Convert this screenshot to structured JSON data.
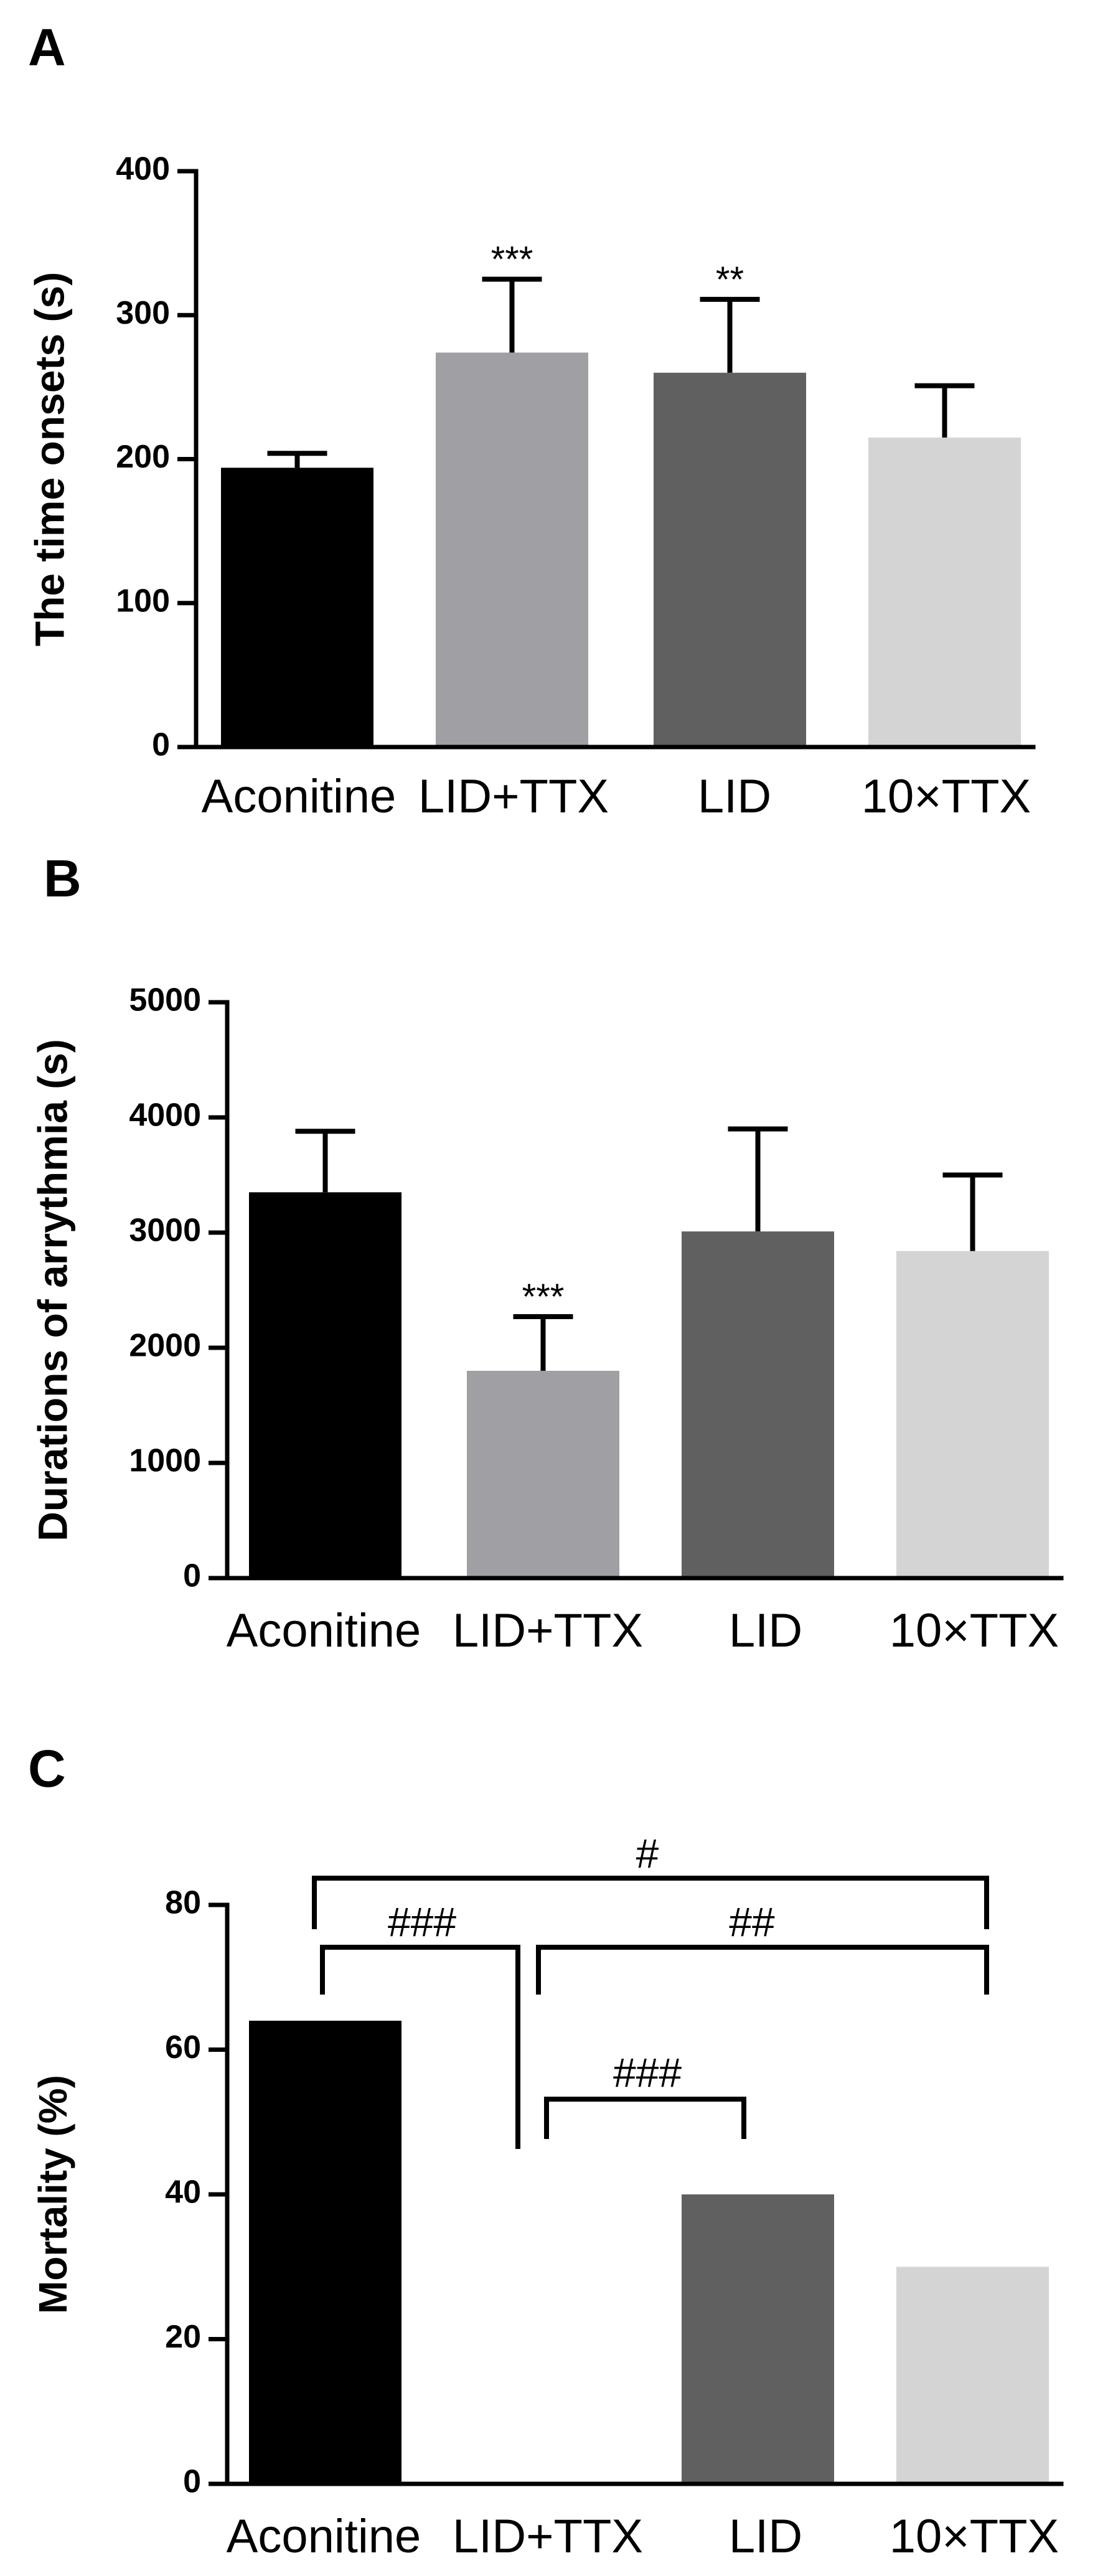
{
  "chart_data": [
    {
      "panel": "A",
      "type": "bar",
      "ylabel": "The time onsets (s)",
      "ylim": [
        0,
        400
      ],
      "yticks": [
        "0",
        "100",
        "200",
        "300",
        "400"
      ],
      "categories": [
        "Aconitine",
        "LID+TTX",
        "LID",
        "10×TTX"
      ],
      "values": [
        194,
        274,
        260,
        215
      ],
      "errors": [
        10,
        51,
        51,
        36
      ],
      "annotations": [
        "",
        "***",
        "**",
        ""
      ],
      "colors": [
        "#000000",
        "#a0a0a4",
        "#606060",
        "#d4d4d4"
      ]
    },
    {
      "panel": "B",
      "type": "bar",
      "ylabel": "Durations of arrythmia (s)",
      "ylim": [
        0,
        5000
      ],
      "yticks": [
        "0",
        "1000",
        "2000",
        "3000",
        "4000",
        "5000"
      ],
      "categories": [
        "Aconitine",
        "LID+TTX",
        "LID",
        "10×TTX"
      ],
      "values": [
        3350,
        1800,
        3010,
        2840
      ],
      "errors": [
        530,
        470,
        890,
        660
      ],
      "annotations": [
        "",
        "***",
        "",
        ""
      ],
      "colors": [
        "#000000",
        "#a0a0a4",
        "#606060",
        "#d4d4d4"
      ]
    },
    {
      "panel": "C",
      "type": "bar",
      "ylabel": "Mortality (%)",
      "ylim": [
        0,
        80
      ],
      "yticks": [
        "0",
        "20",
        "40",
        "60",
        "80"
      ],
      "categories": [
        "Aconitine",
        "LID+TTX",
        "LID",
        "10×TTX"
      ],
      "values": [
        64,
        0,
        40,
        30
      ],
      "colors": [
        "#000000",
        "#a0a0a4",
        "#606060",
        "#d4d4d4"
      ],
      "comparisons": [
        {
          "from": "Aconitine",
          "to": "10×TTX",
          "label": "#"
        },
        {
          "from": "Aconitine",
          "to": "LID+TTX",
          "label": "###"
        },
        {
          "from": "LID+TTX",
          "to": "10×TTX",
          "label": "##"
        },
        {
          "from": "LID+TTX",
          "to": "LID",
          "label": "###"
        }
      ]
    }
  ]
}
